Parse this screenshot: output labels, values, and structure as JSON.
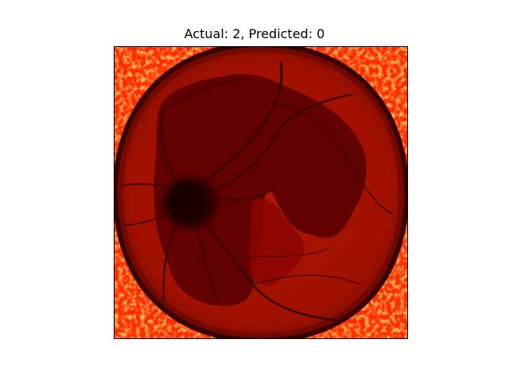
{
  "figure": {
    "title": "Actual: 2, Predicted: 0"
  },
  "image": {
    "subject": "retina-fundus-heatmap",
    "colormap": "hot",
    "colors": {
      "background_field": "#8a0000",
      "fundus_base": "#9c0a00",
      "lesion_region": "#5e0000",
      "optic_disc": "#2a0000",
      "vessels": "#3a0000",
      "rim_shadow": "#1a0000",
      "corner_hot": "#ff3000",
      "corner_bright": "#ffe060"
    }
  }
}
